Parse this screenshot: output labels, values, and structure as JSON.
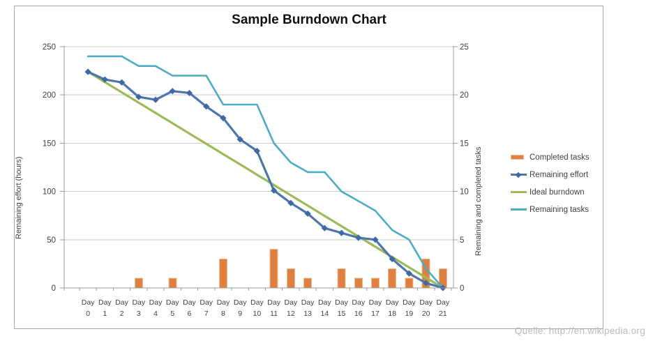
{
  "watermark": "Quelle: http://en.wikipedia.org",
  "colors": {
    "bar": "#DD8040",
    "barEdge": "#EDBE92",
    "effort": "#4B76AE",
    "marker": "#3E69A2",
    "ideal": "#9BBB59",
    "tasks": "#4BACC6",
    "grid": "#C9C9C9",
    "axis": "#9C9C9C",
    "text": "#3F3F3F",
    "title": "#111111",
    "watermark": "#B9B9CB",
    "frame": "#A6A6A6"
  },
  "chart_data": {
    "type": "combo-bar-line",
    "title": "Sample Burndown Chart",
    "categories": [
      "Day 0",
      "Day 1",
      "Day 2",
      "Day 3",
      "Day 4",
      "Day 5",
      "Day 6",
      "Day 7",
      "Day 8",
      "Day 9",
      "Day 10",
      "Day 11",
      "Day 12",
      "Day 13",
      "Day 14",
      "Day 15",
      "Day 16",
      "Day 17",
      "Day 18",
      "Day 19",
      "Day 20",
      "Day 21"
    ],
    "category_word": "Day",
    "category_numbers": [
      "0",
      "1",
      "2",
      "3",
      "4",
      "5",
      "6",
      "7",
      "8",
      "9",
      "10",
      "11",
      "12",
      "13",
      "14",
      "15",
      "16",
      "17",
      "18",
      "19",
      "20",
      "21"
    ],
    "left_axis": {
      "label": "Remaining effort (hours)",
      "range": [
        0,
        250
      ],
      "ticks": [
        0,
        50,
        100,
        150,
        200,
        250
      ]
    },
    "right_axis": {
      "label": "Remaining and completed tasks",
      "range": [
        0,
        25
      ],
      "ticks": [
        0,
        5,
        10,
        15,
        20,
        25
      ]
    },
    "grid": true,
    "legend_position": "right",
    "series": [
      {
        "name": "Completed tasks",
        "type": "bar",
        "axis": "right",
        "values": [
          0,
          0,
          0,
          1,
          0,
          1,
          0,
          0,
          3,
          0,
          0,
          4,
          2,
          1,
          0,
          2,
          1,
          1,
          2,
          1,
          3,
          2
        ]
      },
      {
        "name": "Remaining effort",
        "type": "line",
        "axis": "left",
        "marker": "diamond",
        "values": [
          224,
          216,
          213,
          198,
          195,
          204,
          202,
          188,
          176,
          154,
          142,
          101,
          88,
          77,
          62,
          57,
          52,
          50,
          30,
          15,
          5,
          0
        ]
      },
      {
        "name": "Ideal burndown",
        "type": "line",
        "axis": "left",
        "values": [
          224,
          213.33,
          202.67,
          192,
          181.33,
          170.67,
          160,
          149.33,
          138.67,
          128,
          117.33,
          106.67,
          96,
          85.33,
          74.67,
          64,
          53.33,
          42.67,
          32,
          21.33,
          10.67,
          0
        ]
      },
      {
        "name": "Remaining tasks",
        "type": "line",
        "axis": "right",
        "values": [
          24,
          24,
          24,
          23,
          23,
          22,
          22,
          22,
          19,
          19,
          19,
          15,
          13,
          12,
          12,
          10,
          9,
          8,
          6,
          5,
          2,
          0
        ]
      }
    ]
  }
}
